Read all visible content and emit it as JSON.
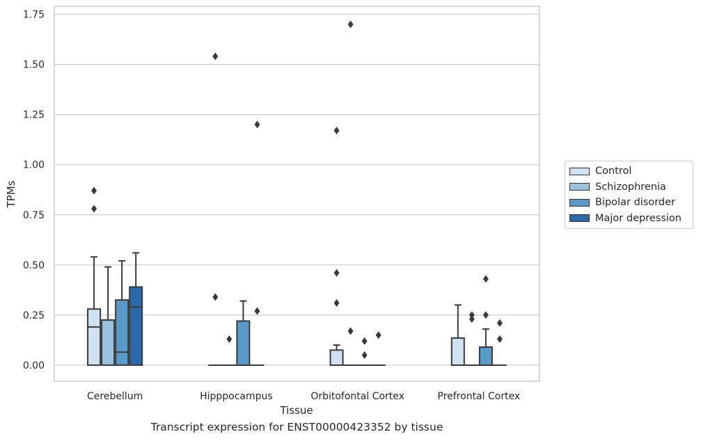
{
  "caption": "Transcript expression for ENST00000423352 by tissue",
  "chart_data": {
    "type": "box",
    "xlabel": "Tissue",
    "ylabel": "TPMs",
    "ylim": [
      -0.08,
      1.79
    ],
    "yticks": [
      "0.00",
      "0.25",
      "0.50",
      "0.75",
      "1.00",
      "1.25",
      "1.50",
      "1.75"
    ],
    "ytick_values": [
      0,
      0.25,
      0.5,
      0.75,
      1.0,
      1.25,
      1.5,
      1.75
    ],
    "grid": "horizontal",
    "legend_position": "right",
    "categories": [
      "Cerebellum",
      "Hipppocampus",
      "Orbitofontal Cortex",
      "Prefrontal Cortex"
    ],
    "series": [
      {
        "name": "Control",
        "color": "#d0e1f2",
        "boxes": [
          {
            "q1": 0,
            "median": 0.19,
            "q3": 0.28,
            "whisker_low": 0,
            "whisker_high": 0.54,
            "outliers": [
              0.78,
              0.87
            ]
          },
          {
            "q1": 0,
            "median": 0,
            "q3": 0,
            "whisker_low": 0,
            "whisker_high": 0,
            "outliers": [
              0.34,
              1.54
            ]
          },
          {
            "q1": 0,
            "median": 0,
            "q3": 0.075,
            "whisker_low": 0,
            "whisker_high": 0.1,
            "outliers": [
              0.31,
              0.46,
              1.17
            ]
          },
          {
            "q1": 0,
            "median": 0,
            "q3": 0.135,
            "whisker_low": 0,
            "whisker_high": 0.3,
            "outliers": []
          }
        ]
      },
      {
        "name": "Schizophrenia",
        "color": "#9ac2dd",
        "boxes": [
          {
            "q1": 0,
            "median": 0.225,
            "q3": 0.225,
            "whisker_low": 0,
            "whisker_high": 0.49,
            "outliers": []
          },
          {
            "q1": 0,
            "median": 0,
            "q3": 0,
            "whisker_low": 0,
            "whisker_high": 0,
            "outliers": [
              0.13
            ]
          },
          {
            "q1": 0,
            "median": 0,
            "q3": 0,
            "whisker_low": 0,
            "whisker_high": 0,
            "outliers": [
              0.17,
              1.7
            ]
          },
          {
            "q1": 0,
            "median": 0,
            "q3": 0,
            "whisker_low": 0,
            "whisker_high": 0,
            "outliers": [
              0.23,
              0.25
            ]
          }
        ]
      },
      {
        "name": "Bipolar disorder",
        "color": "#5a9ac8",
        "boxes": [
          {
            "q1": 0,
            "median": 0.065,
            "q3": 0.325,
            "whisker_low": 0,
            "whisker_high": 0.52,
            "outliers": []
          },
          {
            "q1": 0,
            "median": 0,
            "q3": 0.22,
            "whisker_low": 0,
            "whisker_high": 0.32,
            "outliers": []
          },
          {
            "q1": 0,
            "median": 0,
            "q3": 0,
            "whisker_low": 0,
            "whisker_high": 0,
            "outliers": [
              0.05,
              0.12
            ]
          },
          {
            "q1": 0,
            "median": 0,
            "q3": 0.09,
            "whisker_low": 0,
            "whisker_high": 0.18,
            "outliers": [
              0.25,
              0.43
            ]
          }
        ]
      },
      {
        "name": "Major depression",
        "color": "#2b6aaa",
        "boxes": [
          {
            "q1": 0,
            "median": 0.29,
            "q3": 0.39,
            "whisker_low": 0,
            "whisker_high": 0.56,
            "outliers": []
          },
          {
            "q1": 0,
            "median": 0,
            "q3": 0,
            "whisker_low": 0,
            "whisker_high": 0,
            "outliers": [
              0.27,
              1.2
            ]
          },
          {
            "q1": 0,
            "median": 0,
            "q3": 0,
            "whisker_low": 0,
            "whisker_high": 0,
            "outliers": [
              0.15
            ]
          },
          {
            "q1": 0,
            "median": 0,
            "q3": 0,
            "whisker_low": 0,
            "whisker_high": 0,
            "outliers": [
              0.13,
              0.21
            ]
          }
        ]
      }
    ]
  }
}
